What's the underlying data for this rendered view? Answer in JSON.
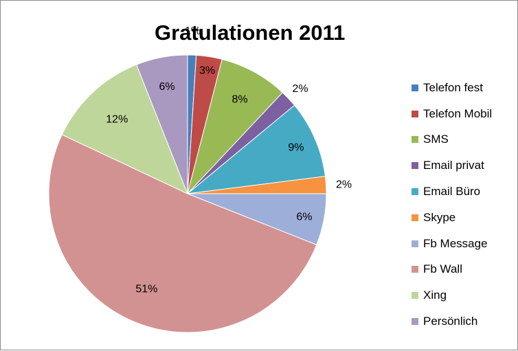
{
  "chart_data": {
    "type": "pie",
    "title": "Gratulationen 2011",
    "legend_position": "right",
    "slices": [
      {
        "label": "Telefon fest",
        "value": 1,
        "display": "1%",
        "color": "#4a7ebb"
      },
      {
        "label": "Telefon Mobil",
        "value": 3,
        "display": "3%",
        "color": "#be4b48"
      },
      {
        "label": "SMS",
        "value": 8,
        "display": "8%",
        "color": "#98b954"
      },
      {
        "label": "Email privat",
        "value": 2,
        "display": "2%",
        "color": "#7d60a0"
      },
      {
        "label": "Email Büro",
        "value": 9,
        "display": "9%",
        "color": "#46aac5"
      },
      {
        "label": "Skype",
        "value": 2,
        "display": "2%",
        "color": "#f69240"
      },
      {
        "label": "Fb Message",
        "value": 6,
        "display": "6%",
        "color": "#9dafd8"
      },
      {
        "label": "Fb Wall",
        "value": 51,
        "display": "51%",
        "color": "#d39292"
      },
      {
        "label": "Xing",
        "value": 12,
        "display": "12%",
        "color": "#bfd69a"
      },
      {
        "label": "Persönlich",
        "value": 6,
        "display": "6%",
        "color": "#a999c1"
      }
    ]
  }
}
